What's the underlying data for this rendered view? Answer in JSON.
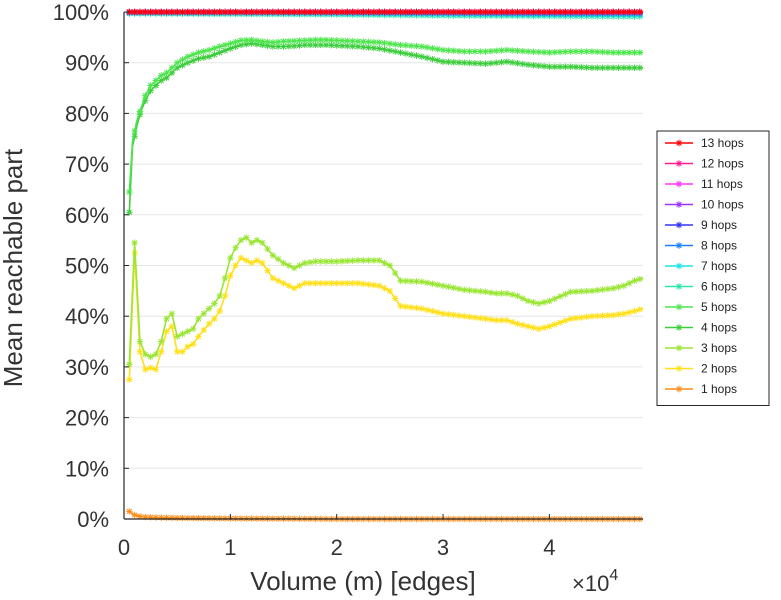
{
  "chart_data": {
    "type": "line",
    "title": "",
    "xlabel": "Volume (m) [edges]",
    "ylabel": "Mean reachable part",
    "x_exponent_base": "×10",
    "x_exponent_power": "4",
    "xlim": [
      0,
      48800
    ],
    "ylim": [
      0,
      1
    ],
    "x_ticks": [
      0,
      10000,
      20000,
      30000,
      40000
    ],
    "x_tick_labels": [
      "0",
      "1",
      "2",
      "3",
      "4"
    ],
    "y_ticks": [
      0,
      0.1,
      0.2,
      0.3,
      0.4,
      0.5,
      0.6,
      0.7,
      0.8,
      0.9,
      1.0
    ],
    "y_tick_labels": [
      "0%",
      "10%",
      "20%",
      "30%",
      "40%",
      "50%",
      "60%",
      "70%",
      "80%",
      "90%",
      "100%"
    ],
    "grid": "horizontal",
    "legend_position": "right",
    "series": [
      {
        "name": "13 hops",
        "color": "#ff0000",
        "x": [
          500,
          48800
        ],
        "y": [
          1.0,
          1.0
        ]
      },
      {
        "name": "12 hops",
        "color": "#ff1a8c",
        "x": [
          500,
          48800
        ],
        "y": [
          1.0,
          1.0
        ]
      },
      {
        "name": "11 hops",
        "color": "#ff33ff",
        "x": [
          500,
          48800
        ],
        "y": [
          1.0,
          1.0
        ]
      },
      {
        "name": "10 hops",
        "color": "#9933ff",
        "x": [
          500,
          48800
        ],
        "y": [
          1.0,
          1.0
        ]
      },
      {
        "name": "9 hops",
        "color": "#3333ff",
        "x": [
          500,
          10000,
          20000,
          30000,
          40000,
          48800
        ],
        "y": [
          1.0,
          1.0,
          1.0,
          1.0,
          1.0,
          1.0
        ]
      },
      {
        "name": "8 hops",
        "color": "#1a7fff",
        "x": [
          500,
          10000,
          20000,
          30000,
          40000,
          48800
        ],
        "y": [
          0.999,
          0.999,
          0.999,
          0.998,
          0.997,
          0.997
        ]
      },
      {
        "name": "7 hops",
        "color": "#19e6e6",
        "x": [
          500,
          10000,
          20000,
          30000,
          40000,
          48800
        ],
        "y": [
          0.998,
          0.998,
          0.997,
          0.996,
          0.995,
          0.995
        ]
      },
      {
        "name": "6 hops",
        "color": "#2ae6a8",
        "x": [
          500,
          10000,
          20000,
          30000,
          40000,
          48800
        ],
        "y": [
          0.997,
          0.996,
          0.995,
          0.993,
          0.992,
          0.991
        ]
      },
      {
        "name": "5 hops",
        "color": "#4ce64c",
        "x": [
          500,
          800,
          1200,
          1600,
          2000,
          2500,
          3000,
          3500,
          4000,
          4500,
          5000,
          6000,
          7000,
          8000,
          9000,
          10000,
          11000,
          12000,
          13000,
          14000,
          15000,
          16000,
          17000,
          18000,
          19000,
          20000,
          22000,
          24000,
          26000,
          28000,
          30000,
          32000,
          34000,
          36000,
          38000,
          40000,
          42000,
          44000,
          46000,
          48800
        ],
        "y": [
          0.645,
          0.745,
          0.785,
          0.81,
          0.835,
          0.855,
          0.865,
          0.875,
          0.88,
          0.89,
          0.9,
          0.912,
          0.92,
          0.925,
          0.932,
          0.938,
          0.944,
          0.945,
          0.942,
          0.94,
          0.942,
          0.943,
          0.944,
          0.945,
          0.945,
          0.944,
          0.942,
          0.94,
          0.935,
          0.932,
          0.925,
          0.922,
          0.922,
          0.925,
          0.922,
          0.92,
          0.922,
          0.922,
          0.92,
          0.92
        ]
      },
      {
        "name": "4 hops",
        "color": "#3ccd3c",
        "x": [
          500,
          800,
          1200,
          1600,
          2000,
          2500,
          3000,
          3500,
          4000,
          4500,
          5000,
          6000,
          7000,
          8000,
          9000,
          10000,
          11000,
          12000,
          13000,
          14000,
          15000,
          16000,
          17000,
          18000,
          19000,
          20000,
          22000,
          24000,
          26000,
          28000,
          30000,
          32000,
          34000,
          36000,
          38000,
          40000,
          42000,
          44000,
          46000,
          48800
        ],
        "y": [
          0.605,
          0.735,
          0.775,
          0.805,
          0.825,
          0.845,
          0.855,
          0.865,
          0.87,
          0.88,
          0.89,
          0.9,
          0.908,
          0.912,
          0.92,
          0.928,
          0.935,
          0.938,
          0.935,
          0.932,
          0.932,
          0.933,
          0.935,
          0.935,
          0.935,
          0.934,
          0.932,
          0.928,
          0.92,
          0.912,
          0.902,
          0.9,
          0.898,
          0.902,
          0.896,
          0.892,
          0.892,
          0.89,
          0.89,
          0.89
        ]
      },
      {
        "name": "3 hops",
        "color": "#99e633",
        "x": [
          500,
          1000,
          1500,
          2000,
          2500,
          3000,
          3500,
          4000,
          4500,
          5000,
          5500,
          6000,
          6500,
          7000,
          8000,
          8500,
          9000,
          9500,
          10000,
          10500,
          11000,
          11500,
          12000,
          12500,
          13000,
          14000,
          15000,
          16000,
          17000,
          18000,
          19000,
          20000,
          22000,
          24000,
          25000,
          26000,
          28000,
          30000,
          32000,
          34000,
          35000,
          36000,
          37000,
          38000,
          39000,
          40000,
          42000,
          44000,
          46000,
          47000,
          48000,
          48800
        ],
        "y": [
          0.305,
          0.545,
          0.35,
          0.325,
          0.32,
          0.325,
          0.35,
          0.395,
          0.405,
          0.36,
          0.365,
          0.37,
          0.375,
          0.395,
          0.415,
          0.425,
          0.44,
          0.475,
          0.515,
          0.535,
          0.55,
          0.555,
          0.545,
          0.55,
          0.545,
          0.52,
          0.505,
          0.495,
          0.505,
          0.508,
          0.508,
          0.508,
          0.51,
          0.51,
          0.5,
          0.47,
          0.468,
          0.46,
          0.452,
          0.448,
          0.445,
          0.445,
          0.44,
          0.43,
          0.425,
          0.43,
          0.448,
          0.45,
          0.455,
          0.46,
          0.47,
          0.475
        ]
      },
      {
        "name": "2 hops",
        "color": "#ffe019",
        "x": [
          500,
          1000,
          1500,
          2000,
          2500,
          3000,
          3500,
          4000,
          4500,
          5000,
          5500,
          6000,
          6500,
          7000,
          8000,
          8500,
          9000,
          9500,
          10000,
          10500,
          11000,
          11500,
          12000,
          12500,
          13000,
          14000,
          15000,
          16000,
          17000,
          18000,
          19000,
          20000,
          22000,
          24000,
          25000,
          26000,
          28000,
          30000,
          32000,
          34000,
          35000,
          36000,
          37000,
          38000,
          39000,
          40000,
          42000,
          44000,
          46000,
          47000,
          48000,
          48800
        ],
        "y": [
          0.275,
          0.525,
          0.33,
          0.295,
          0.298,
          0.295,
          0.33,
          0.37,
          0.38,
          0.33,
          0.33,
          0.34,
          0.345,
          0.36,
          0.385,
          0.395,
          0.41,
          0.44,
          0.48,
          0.5,
          0.515,
          0.51,
          0.505,
          0.51,
          0.505,
          0.475,
          0.465,
          0.455,
          0.465,
          0.465,
          0.465,
          0.465,
          0.465,
          0.46,
          0.45,
          0.42,
          0.415,
          0.405,
          0.4,
          0.395,
          0.392,
          0.392,
          0.385,
          0.38,
          0.375,
          0.38,
          0.395,
          0.4,
          0.402,
          0.405,
          0.41,
          0.415
        ]
      },
      {
        "name": "1 hops",
        "color": "#ff8c19",
        "x": [
          500,
          800,
          1200,
          2000,
          3000,
          5000,
          10000,
          20000,
          30000,
          40000,
          48800
        ],
        "y": [
          0.015,
          0.01,
          0.006,
          0.004,
          0.003,
          0.002,
          0.001,
          0.0,
          0.0,
          0.0,
          0.0
        ]
      }
    ]
  }
}
